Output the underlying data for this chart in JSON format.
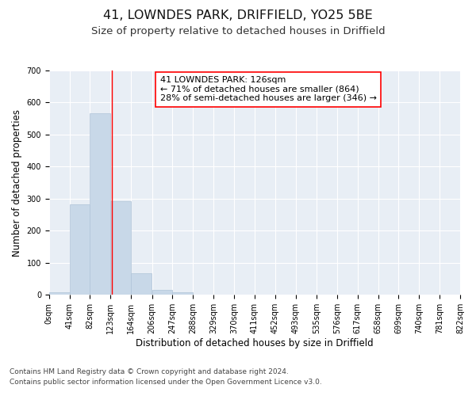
{
  "title": "41, LOWNDES PARK, DRIFFIELD, YO25 5BE",
  "subtitle": "Size of property relative to detached houses in Driffield",
  "xlabel": "Distribution of detached houses by size in Driffield",
  "ylabel": "Number of detached properties",
  "footnote1": "Contains HM Land Registry data © Crown copyright and database right 2024.",
  "footnote2": "Contains public sector information licensed under the Open Government Licence v3.0.",
  "bar_edges": [
    0,
    41,
    82,
    123,
    164,
    206,
    247,
    288,
    329,
    370,
    411,
    452,
    493,
    535,
    576,
    617,
    658,
    699,
    740,
    781,
    822
  ],
  "bar_heights": [
    8,
    282,
    567,
    293,
    68,
    15,
    9,
    0,
    0,
    0,
    0,
    0,
    0,
    0,
    0,
    0,
    0,
    0,
    0,
    0
  ],
  "bar_color": "#c8d8e8",
  "bar_edgecolor": "#b0c4d8",
  "red_line_x": 126,
  "annotation_text": "41 LOWNDES PARK: 126sqm\n← 71% of detached houses are smaller (864)\n28% of semi-detached houses are larger (346) →",
  "ylim": [
    0,
    700
  ],
  "yticks": [
    0,
    100,
    200,
    300,
    400,
    500,
    600,
    700
  ],
  "xtick_labels": [
    "0sqm",
    "41sqm",
    "82sqm",
    "123sqm",
    "164sqm",
    "206sqm",
    "247sqm",
    "288sqm",
    "329sqm",
    "370sqm",
    "411sqm",
    "452sqm",
    "493sqm",
    "535sqm",
    "576sqm",
    "617sqm",
    "658sqm",
    "699sqm",
    "740sqm",
    "781sqm",
    "822sqm"
  ],
  "background_color": "#e8eef5",
  "grid_color": "#ffffff",
  "title_fontsize": 11.5,
  "subtitle_fontsize": 9.5,
  "axis_label_fontsize": 8.5,
  "tick_fontsize": 7,
  "annotation_fontsize": 8,
  "footnote_fontsize": 6.5
}
